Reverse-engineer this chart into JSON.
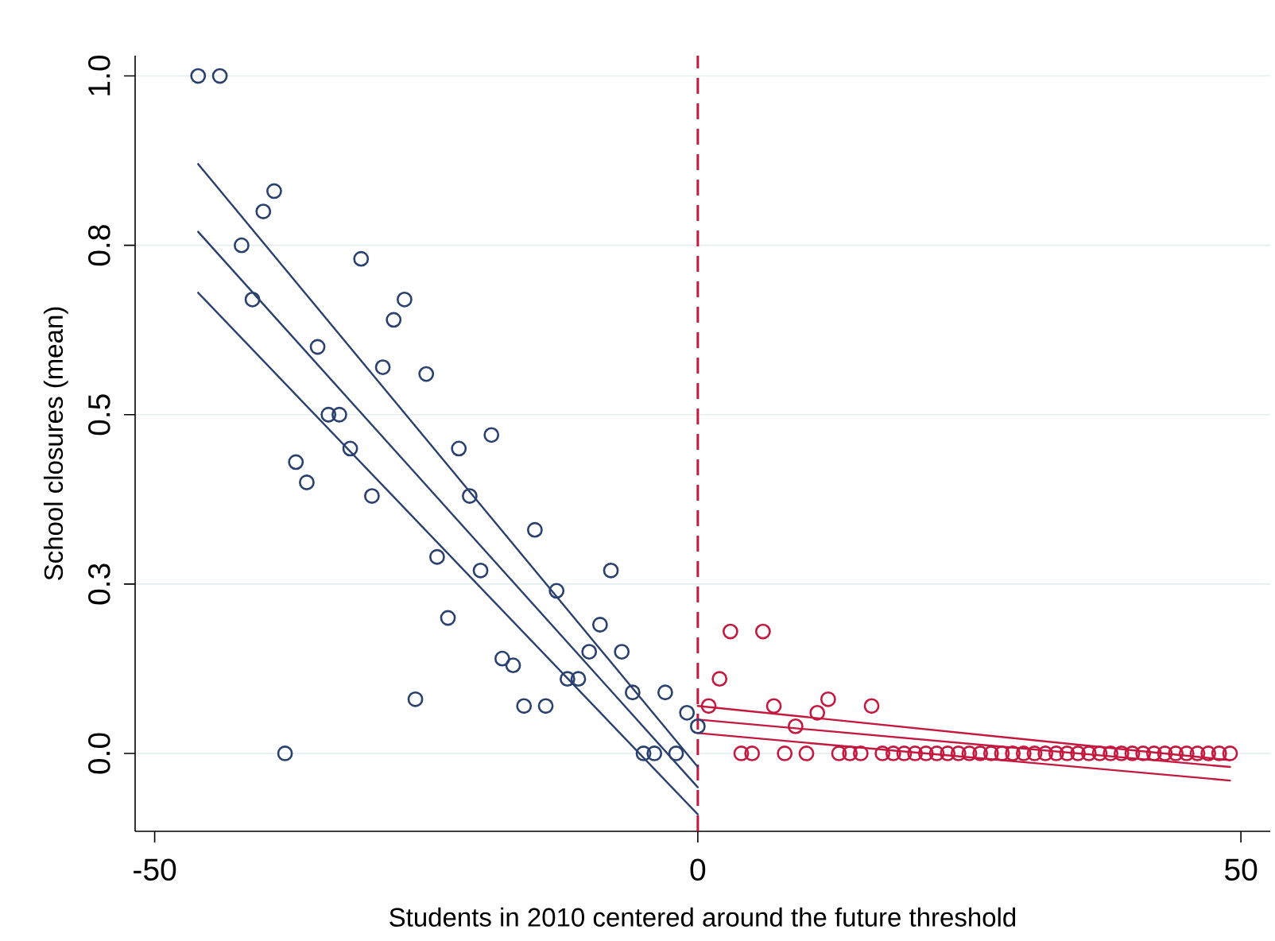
{
  "chart_data": {
    "type": "scatter",
    "xlabel": "Students in 2010 centered around the future threshold",
    "ylabel": "School closures (mean)",
    "xlim": [
      -51.8,
      52.7
    ],
    "ylim": [
      -0.115,
      1.03
    ],
    "xticks": [
      -50,
      0,
      50
    ],
    "yticks": [
      {
        "value": 0,
        "label": "0.0"
      },
      {
        "value": 0.25,
        "label": "0.3"
      },
      0.5,
      {
        "value": 0.75,
        "label": "0.8"
      },
      {
        "value": 1,
        "label": "1.0"
      }
    ],
    "grid": "y",
    "marker": "circle",
    "ref_lines": [
      {
        "axis": "x",
        "value": 0,
        "color": "#c5183f",
        "line_style": "dashed"
      }
    ],
    "series": [
      {
        "color": "#2a4170",
        "x": [
          -46,
          -44,
          -42,
          -41,
          -40,
          -39,
          -38,
          -37,
          -36,
          -35,
          -34,
          -33,
          -32,
          -31,
          -30,
          -29,
          -28,
          -27,
          -26,
          -25,
          -24,
          -23,
          -22,
          -21,
          -20,
          -19,
          -18,
          -17,
          -16,
          -15,
          -14,
          -13,
          -12,
          -11,
          -10,
          -9,
          -8,
          -7,
          -6,
          -5,
          -4,
          -3,
          -2,
          -1,
          0
        ],
        "values": [
          1.0,
          1.0,
          0.75,
          0.67,
          0.8,
          0.83,
          0.0,
          0.43,
          0.4,
          0.6,
          0.5,
          0.5,
          0.45,
          0.73,
          0.38,
          0.57,
          0.64,
          0.67,
          0.08,
          0.56,
          0.29,
          0.2,
          0.45,
          0.38,
          0.27,
          0.47,
          0.14,
          0.13,
          0.07,
          0.33,
          0.07,
          0.24,
          0.11,
          0.11,
          0.15,
          0.19,
          0.27,
          0.15,
          0.09,
          0.0,
          0.0,
          0.09,
          0.0,
          0.06,
          0.04
        ]
      },
      {
        "color": "#c5183f",
        "x": [
          1,
          2,
          3,
          4,
          5,
          6,
          7,
          8,
          9,
          10,
          11,
          12,
          13,
          14,
          15,
          16,
          17,
          18,
          19,
          20,
          21,
          22,
          23,
          24,
          25,
          26,
          27,
          28,
          29,
          30,
          31,
          32,
          33,
          34,
          35,
          36,
          37,
          38,
          39,
          40,
          41,
          42,
          43,
          44,
          45,
          46,
          47,
          48,
          49
        ],
        "values": [
          0.07,
          0.11,
          0.18,
          0.0,
          0.0,
          0.18,
          0.07,
          0.0,
          0.04,
          0.0,
          0.06,
          0.08,
          0.0,
          0.0,
          0.0,
          0.07,
          0,
          0,
          0,
          0,
          0,
          0,
          0,
          0,
          0,
          0,
          0,
          0,
          0,
          0,
          0,
          0,
          0,
          0,
          0,
          0,
          0,
          0,
          0,
          0,
          0,
          0,
          0,
          0,
          0,
          0,
          0,
          0,
          0
        ]
      },
      {
        "type": "line",
        "marker": "none",
        "line_style": "solid",
        "color": "#2a4170",
        "x": [
          -46,
          0
        ],
        "values": [
          0.87,
          -0.02
        ]
      },
      {
        "type": "line",
        "marker": "none",
        "line_style": "solid",
        "color": "#2a4170",
        "x": [
          -46,
          0
        ],
        "values": [
          0.77,
          -0.05
        ]
      },
      {
        "type": "line",
        "marker": "none",
        "line_style": "solid",
        "color": "#2a4170",
        "x": [
          -46,
          0
        ],
        "values": [
          0.68,
          -0.09
        ]
      },
      {
        "type": "line",
        "marker": "none",
        "line_style": "solid",
        "color": "#c5183f",
        "x": [
          0,
          49
        ],
        "values": [
          0.07,
          -0.01
        ]
      },
      {
        "type": "line",
        "marker": "none",
        "line_style": "solid",
        "color": "#c5183f",
        "x": [
          0,
          49
        ],
        "values": [
          0.05,
          -0.02
        ]
      },
      {
        "type": "line",
        "marker": "none",
        "line_style": "solid",
        "color": "#c5183f",
        "x": [
          0,
          49
        ],
        "values": [
          0.03,
          -0.04
        ]
      }
    ]
  }
}
